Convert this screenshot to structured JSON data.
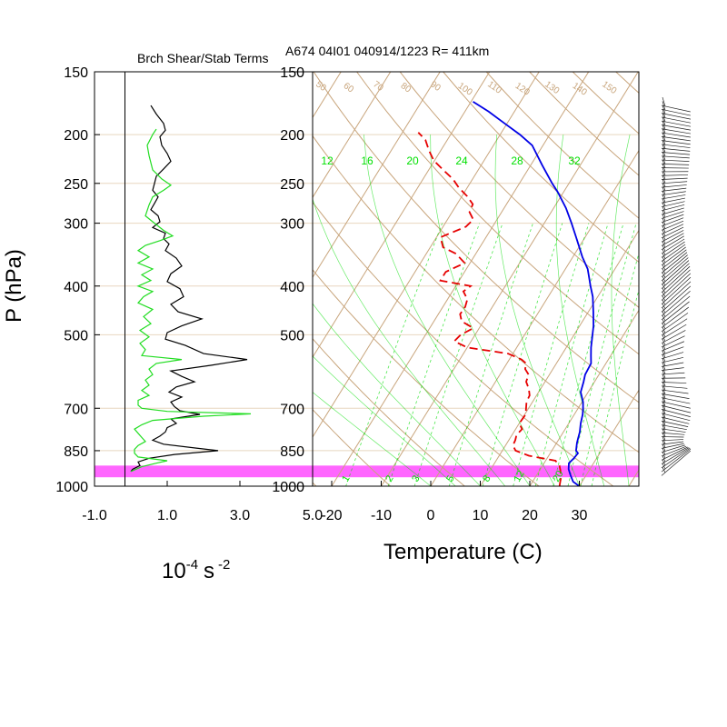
{
  "header": {
    "left_title": "Brch Shear/Stab Terms",
    "right_title": "A674 04I01 040914/1223 R= 411km"
  },
  "left_panel": {
    "ylabel": "P (hPa)",
    "xlabel_base": "10",
    "xlabel_exp": "-4",
    "xlabel_unit": "s",
    "xlabel_unit_exp": "-2"
  },
  "right_panel": {
    "xlabel": "Temperature (C)"
  },
  "colors": {
    "temperature": "#0000e6",
    "dewpoint": "#e60000",
    "isotherm": "#c8a57c",
    "mixing": "#00dd00",
    "highlight": "#ff66ff",
    "shear": "#000000",
    "stability": "#22dd22"
  },
  "chart_data": [
    {
      "type": "line",
      "name": "shear-stability-profile",
      "title": "Brch Shear/Stab Terms",
      "xlabel": "10^-4 s^-2",
      "ylabel": "P (hPa)",
      "xlim": [
        -1.0,
        5.0
      ],
      "ylim": [
        1000,
        150
      ],
      "yscale": "log",
      "x_ticks": [
        "-1.0",
        "1.0",
        "3.0",
        "5.0"
      ],
      "y_ticks": [
        "150",
        "200",
        "250",
        "300",
        "400",
        "500",
        "700",
        "850",
        "1000"
      ],
      "grid": true,
      "series": [
        {
          "key": "shear",
          "color": "#000000",
          "points": [
            [
              175,
              0.55
            ],
            [
              182,
              0.7
            ],
            [
              190,
              0.9
            ],
            [
              196,
              0.95
            ],
            [
              202,
              0.8
            ],
            [
              210,
              0.85
            ],
            [
              218,
              1.0
            ],
            [
              226,
              1.1
            ],
            [
              234,
              0.9
            ],
            [
              242,
              0.7
            ],
            [
              250,
              0.65
            ],
            [
              258,
              0.6
            ],
            [
              266,
              0.75
            ],
            [
              274,
              0.65
            ],
            [
              282,
              0.55
            ],
            [
              290,
              0.75
            ],
            [
              298,
              0.8
            ],
            [
              306,
              0.6
            ],
            [
              314,
              0.95
            ],
            [
              322,
              0.9
            ],
            [
              330,
              1.05
            ],
            [
              340,
              0.95
            ],
            [
              352,
              1.25
            ],
            [
              365,
              1.4
            ],
            [
              378,
              1.1
            ],
            [
              392,
              1.0
            ],
            [
              405,
              1.35
            ],
            [
              420,
              1.45
            ],
            [
              435,
              1.1
            ],
            [
              450,
              1.3
            ],
            [
              465,
              1.95
            ],
            [
              480,
              1.4
            ],
            [
              495,
              1.0
            ],
            [
              510,
              0.95
            ],
            [
              525,
              1.5
            ],
            [
              545,
              2.0
            ],
            [
              560,
              3.2
            ],
            [
              575,
              2.2
            ],
            [
              590,
              1.1
            ],
            [
              605,
              1.4
            ],
            [
              620,
              1.75
            ],
            [
              635,
              1.25
            ],
            [
              650,
              1.05
            ],
            [
              665,
              1.4
            ],
            [
              680,
              1.1
            ],
            [
              695,
              1.2
            ],
            [
              708,
              1.35
            ],
            [
              720,
              1.9
            ],
            [
              735,
              1.1
            ],
            [
              750,
              1.25
            ],
            [
              765,
              1.0
            ],
            [
              780,
              0.95
            ],
            [
              795,
              0.8
            ],
            [
              810,
              0.6
            ],
            [
              825,
              0.9
            ],
            [
              840,
              1.8
            ],
            [
              850,
              2.4
            ],
            [
              865,
              1.2
            ],
            [
              880,
              0.5
            ],
            [
              895,
              0.2
            ],
            [
              910,
              0.25
            ],
            [
              925,
              0.05
            ],
            [
              935,
              0.0
            ]
          ]
        },
        {
          "key": "stability",
          "color": "#22dd22",
          "points": [
            [
              195,
              0.7
            ],
            [
              200,
              0.6
            ],
            [
              210,
              0.45
            ],
            [
              220,
              0.5
            ],
            [
              235,
              0.6
            ],
            [
              245,
              0.85
            ],
            [
              252,
              1.1
            ],
            [
              258,
              0.9
            ],
            [
              266,
              0.6
            ],
            [
              276,
              0.5
            ],
            [
              290,
              0.4
            ],
            [
              300,
              0.65
            ],
            [
              310,
              0.9
            ],
            [
              318,
              1.15
            ],
            [
              325,
              0.8
            ],
            [
              332,
              0.4
            ],
            [
              340,
              0.2
            ],
            [
              350,
              0.5
            ],
            [
              360,
              0.2
            ],
            [
              370,
              0.6
            ],
            [
              380,
              0.3
            ],
            [
              390,
              0.55
            ],
            [
              400,
              0.2
            ],
            [
              410,
              0.6
            ],
            [
              420,
              0.35
            ],
            [
              432,
              0.2
            ],
            [
              445,
              0.6
            ],
            [
              460,
              0.35
            ],
            [
              475,
              0.55
            ],
            [
              490,
              0.25
            ],
            [
              505,
              0.5
            ],
            [
              520,
              0.25
            ],
            [
              535,
              0.4
            ],
            [
              550,
              0.3
            ],
            [
              560,
              1.4
            ],
            [
              570,
              0.7
            ],
            [
              585,
              0.5
            ],
            [
              600,
              0.6
            ],
            [
              615,
              0.4
            ],
            [
              630,
              0.5
            ],
            [
              645,
              0.3
            ],
            [
              660,
              0.5
            ],
            [
              675,
              0.2
            ],
            [
              690,
              0.2
            ],
            [
              700,
              0.3
            ],
            [
              710,
              1.0
            ],
            [
              718,
              3.3
            ],
            [
              726,
              2.0
            ],
            [
              740,
              0.6
            ],
            [
              755,
              0.3
            ],
            [
              770,
              0.1
            ],
            [
              785,
              0.2
            ],
            [
              800,
              0.3
            ],
            [
              815,
              0.4
            ],
            [
              830,
              0.2
            ],
            [
              845,
              0.1
            ],
            [
              860,
              0.1
            ],
            [
              875,
              0.2
            ],
            [
              890,
              1.0
            ],
            [
              900,
              0.7
            ],
            [
              915,
              0.3
            ],
            [
              935,
              0.0
            ]
          ]
        }
      ]
    },
    {
      "type": "line",
      "name": "skewt-logp",
      "xlabel": "Temperature (C)",
      "ylabel": "P (hPa)",
      "xlim": [
        -23,
        43
      ],
      "ylim": [
        1000,
        150
      ],
      "yscale": "log",
      "x_ticks": [
        "-20",
        "-10",
        "0",
        "10",
        "20",
        "30"
      ],
      "y_ticks": [
        "150",
        "200",
        "250",
        "300",
        "400",
        "500",
        "700",
        "850",
        "1000"
      ],
      "skewed_isotherms": [
        -140,
        -130,
        -120,
        -110,
        -100,
        -90,
        -80,
        -70,
        -60,
        -50,
        -40,
        -30,
        -20,
        -10,
        0,
        10,
        20,
        30,
        40
      ],
      "isotherm_labels_top": [
        "50",
        "60",
        "70",
        "80",
        "90",
        "100",
        "110",
        "120",
        "130",
        "140",
        "150"
      ],
      "mixing_labels_top": [
        "12",
        "16",
        "20",
        "24",
        "28",
        "32"
      ],
      "mixing_labels_bottom": [
        "1",
        "2",
        "3",
        "5",
        "8",
        "12",
        "20"
      ],
      "highlight_band_hpa": [
        910,
        960
      ],
      "series": [
        {
          "key": "temperature",
          "name": "",
          "color": "#0000e6",
          "style": "solid",
          "points": [
            [
              1000,
              30.0
            ],
            [
              980,
              28.2
            ],
            [
              950,
              26.8
            ],
            [
              925,
              25.7
            ],
            [
              900,
              25.0
            ],
            [
              880,
              25.4
            ],
            [
              860,
              25.6
            ],
            [
              850,
              24.9
            ],
            [
              820,
              24.1
            ],
            [
              800,
              23.7
            ],
            [
              780,
              23.3
            ],
            [
              750,
              22.4
            ],
            [
              720,
              21.7
            ],
            [
              700,
              21.0
            ],
            [
              680,
              20.2
            ],
            [
              650,
              18.5
            ],
            [
              620,
              17.8
            ],
            [
              600,
              17.2
            ],
            [
              570,
              17.0
            ],
            [
              550,
              16.0
            ],
            [
              530,
              15.0
            ],
            [
              500,
              13.7
            ],
            [
              480,
              12.8
            ],
            [
              450,
              11.0
            ],
            [
              420,
              9.0
            ],
            [
              400,
              7.2
            ],
            [
              370,
              4.5
            ],
            [
              350,
              1.9
            ],
            [
              320,
              -1.8
            ],
            [
              300,
              -4.5
            ],
            [
              280,
              -7.5
            ],
            [
              260,
              -11.2
            ],
            [
              250,
              -13.4
            ],
            [
              230,
              -17.7
            ],
            [
              210,
              -22.2
            ],
            [
              200,
              -26.0
            ],
            [
              190,
              -30.5
            ],
            [
              180,
              -35.2
            ],
            [
              172,
              -39.6
            ]
          ]
        },
        {
          "key": "dewpoint",
          "name": "",
          "color": "#e60000",
          "style": "dashed",
          "points": [
            [
              1000,
              26.0
            ],
            [
              980,
              25.6
            ],
            [
              960,
              25.2
            ],
            [
              945,
              24.7
            ],
            [
              930,
              24.2
            ],
            [
              910,
              23.4
            ],
            [
              890,
              22.0
            ],
            [
              870,
              16.0
            ],
            [
              850,
              12.7
            ],
            [
              830,
              11.5
            ],
            [
              810,
              11.3
            ],
            [
              790,
              10.9
            ],
            [
              770,
              11.3
            ],
            [
              750,
              10.0
            ],
            [
              720,
              10.2
            ],
            [
              700,
              9.5
            ],
            [
              680,
              8.8
            ],
            [
              660,
              8.6
            ],
            [
              640,
              7.6
            ],
            [
              620,
              6.2
            ],
            [
              600,
              5.8
            ],
            [
              585,
              4.4
            ],
            [
              570,
              3.9
            ],
            [
              560,
              2.5
            ],
            [
              545,
              -1.0
            ],
            [
              530,
              -10.0
            ],
            [
              515,
              -13.4
            ],
            [
              500,
              -12.9
            ],
            [
              485,
              -11.2
            ],
            [
              470,
              -14.4
            ],
            [
              455,
              -15.6
            ],
            [
              440,
              -15.5
            ],
            [
              425,
              -16.0
            ],
            [
              410,
              -17.8
            ],
            [
              400,
              -17.0
            ],
            [
              390,
              -23.8
            ],
            [
              375,
              -23.8
            ],
            [
              360,
              -21.1
            ],
            [
              345,
              -24.0
            ],
            [
              335,
              -27.4
            ],
            [
              320,
              -29.2
            ],
            [
              305,
              -25.4
            ],
            [
              295,
              -24.8
            ],
            [
              285,
              -26.5
            ],
            [
              275,
              -26.8
            ],
            [
              265,
              -29.0
            ],
            [
              255,
              -31.7
            ],
            [
              245,
              -34.0
            ],
            [
              235,
              -37.1
            ],
            [
              225,
              -40.2
            ],
            [
              215,
              -42.4
            ],
            [
              205,
              -44.4
            ],
            [
              198,
              -46.8
            ]
          ]
        }
      ]
    }
  ]
}
